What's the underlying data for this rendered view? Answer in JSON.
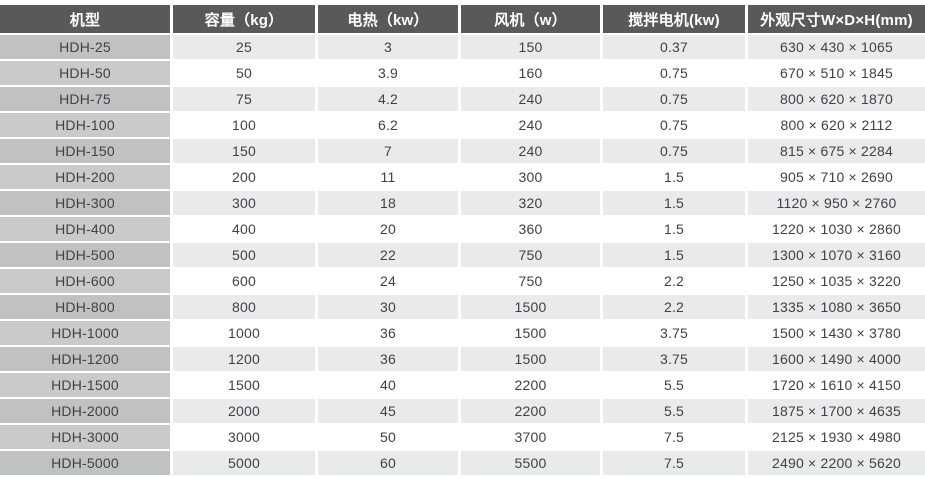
{
  "table": {
    "columns": [
      {
        "key": "model",
        "label": "机型"
      },
      {
        "key": "capacity",
        "label": "容量（kg）"
      },
      {
        "key": "heating",
        "label": "电热（kw）"
      },
      {
        "key": "fan",
        "label": "风机（w）"
      },
      {
        "key": "mixer-motor",
        "label": "搅拌电机(kw)"
      },
      {
        "key": "dimensions",
        "label": "外观尺寸W×D×H(mm)"
      }
    ],
    "rows": [
      [
        "HDH-25",
        "25",
        "3",
        "150",
        "0.37",
        "630 × 430 × 1065"
      ],
      [
        "HDH-50",
        "50",
        "3.9",
        "160",
        "0.75",
        "670 × 510 × 1845"
      ],
      [
        "HDH-75",
        "75",
        "4.2",
        "240",
        "0.75",
        "800 × 620 × 1870"
      ],
      [
        "HDH-100",
        "100",
        "6.2",
        "240",
        "0.75",
        "800 × 620 × 2112"
      ],
      [
        "HDH-150",
        "150",
        "7",
        "240",
        "0.75",
        "815 × 675 × 2284"
      ],
      [
        "HDH-200",
        "200",
        "11",
        "300",
        "1.5",
        "905 × 710 × 2690"
      ],
      [
        "HDH-300",
        "300",
        "18",
        "320",
        "1.5",
        "1120 × 950 × 2760"
      ],
      [
        "HDH-400",
        "400",
        "20",
        "360",
        "1.5",
        "1220 × 1030 × 2860"
      ],
      [
        "HDH-500",
        "500",
        "22",
        "750",
        "1.5",
        "1300 × 1070 × 3160"
      ],
      [
        "HDH-600",
        "600",
        "24",
        "750",
        "2.2",
        "1250 × 1035 × 3220"
      ],
      [
        "HDH-800",
        "800",
        "30",
        "1500",
        "2.2",
        "1335 × 1080 × 3650"
      ],
      [
        "HDH-1000",
        "1000",
        "36",
        "1500",
        "3.75",
        "1500 × 1430 × 3780"
      ],
      [
        "HDH-1200",
        "1200",
        "36",
        "1500",
        "3.75",
        "1600 × 1490 × 4000"
      ],
      [
        "HDH-1500",
        "1500",
        "40",
        "2200",
        "5.5",
        "1720 × 1610 × 4150"
      ],
      [
        "HDH-2000",
        "2000",
        "45",
        "2200",
        "5.5",
        "1875 × 1700 × 4635"
      ],
      [
        "HDH-3000",
        "3000",
        "50",
        "3700",
        "7.5",
        "2125 × 1930 × 4980"
      ],
      [
        "HDH-5000",
        "5000",
        "60",
        "5500",
        "7.5",
        "2490 × 2200 × 5620"
      ]
    ]
  },
  "colors": {
    "header_bg": "#58595b",
    "header_text": "#ffffff",
    "row_odd_bg": "#e8eaec",
    "row_even_bg": "#ffffff",
    "model_col_odd_bg": "#bfc1c3",
    "model_col_even_bg": "#c8cacc",
    "cell_text": "#3f4143"
  }
}
